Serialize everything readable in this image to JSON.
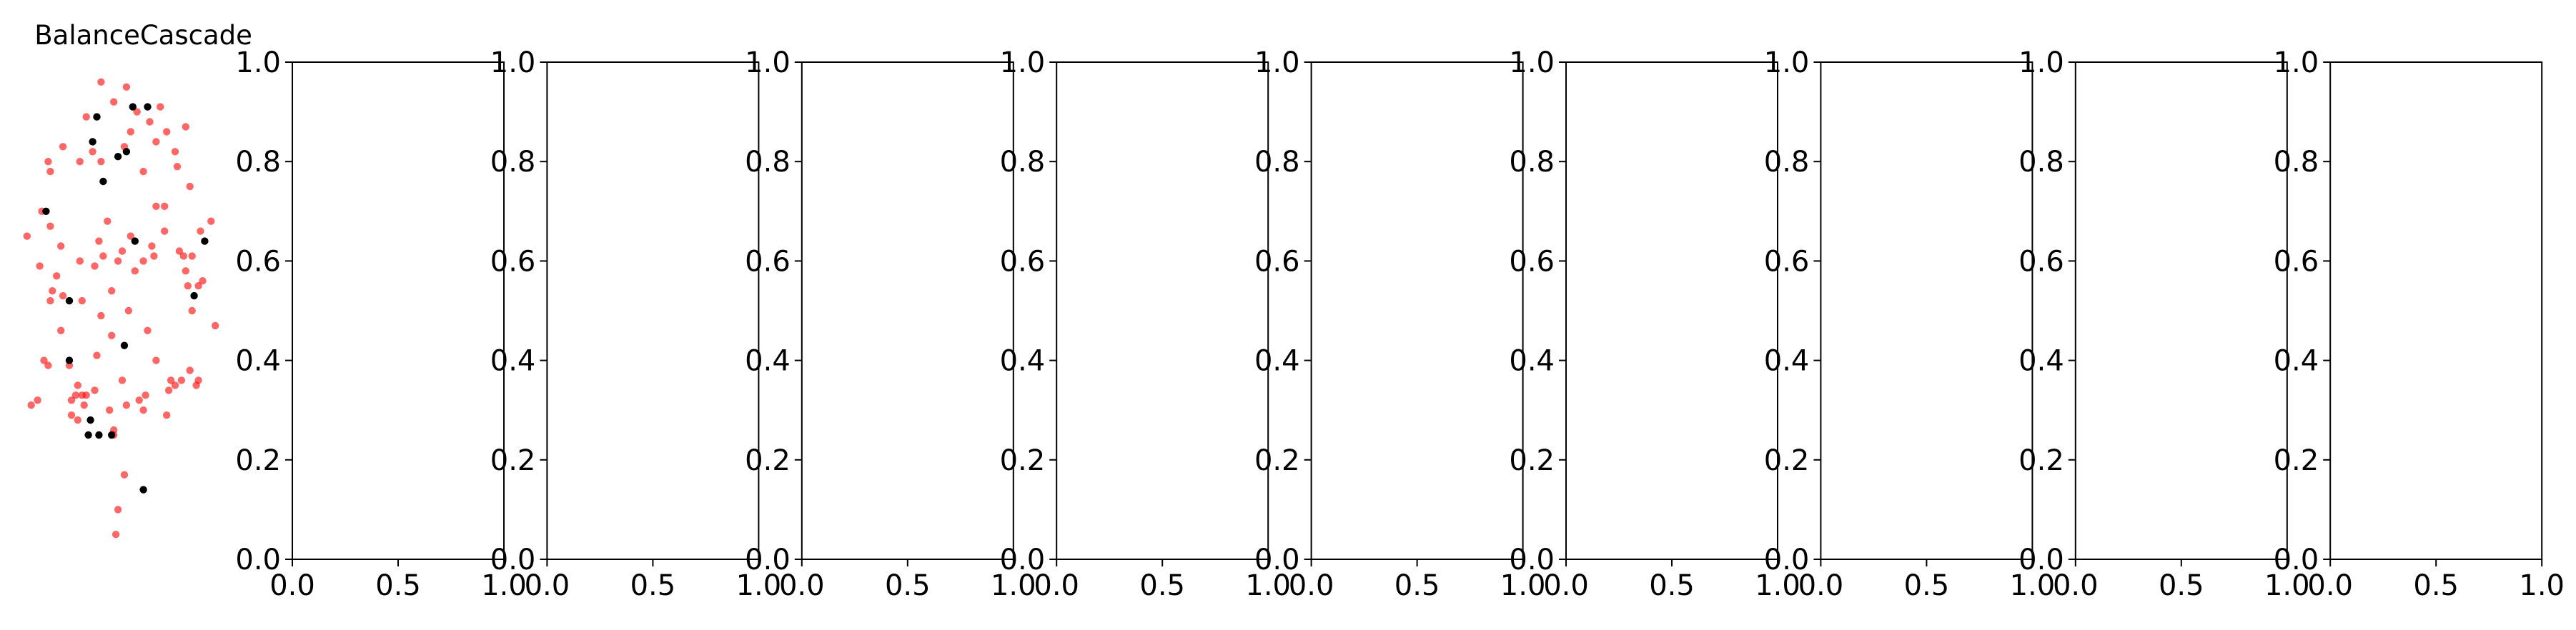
{
  "chart_data": [
    {
      "type": "scatter",
      "title": "BalanceCascade",
      "axis_visible": false,
      "series": [
        {
          "color": "#ff0000",
          "alpha": 0.6,
          "points": [
            [
              0.3,
              0.96
            ],
            [
              0.42,
              0.95
            ],
            [
              0.36,
              0.92
            ],
            [
              0.58,
              0.91
            ],
            [
              0.47,
              0.9
            ],
            [
              0.23,
              0.89
            ],
            [
              0.53,
              0.88
            ],
            [
              0.7,
              0.87
            ],
            [
              0.61,
              0.86
            ],
            [
              0.44,
              0.86
            ],
            [
              0.56,
              0.84
            ],
            [
              0.12,
              0.83
            ],
            [
              0.41,
              0.83
            ],
            [
              0.26,
              0.82
            ],
            [
              0.65,
              0.82
            ],
            [
              0.05,
              0.8
            ],
            [
              0.2,
              0.8
            ],
            [
              0.3,
              0.8
            ],
            [
              0.66,
              0.79
            ],
            [
              0.06,
              0.78
            ],
            [
              0.5,
              0.78
            ],
            [
              0.72,
              0.75
            ],
            [
              0.6,
              0.71
            ],
            [
              0.56,
              0.71
            ],
            [
              0.02,
              0.7
            ],
            [
              0.82,
              0.68
            ],
            [
              0.33,
              0.68
            ],
            [
              0.06,
              0.67
            ],
            [
              0.6,
              0.66
            ],
            [
              0.77,
              0.66
            ],
            [
              -0.05,
              0.65
            ],
            [
              0.44,
              0.65
            ],
            [
              0.29,
              0.64
            ],
            [
              0.54,
              0.63
            ],
            [
              0.11,
              0.63
            ],
            [
              0.4,
              0.62
            ],
            [
              0.67,
              0.62
            ],
            [
              0.55,
              0.61
            ],
            [
              0.31,
              0.61
            ],
            [
              0.69,
              0.61
            ],
            [
              0.73,
              0.61
            ],
            [
              0.38,
              0.6
            ],
            [
              0.5,
              0.6
            ],
            [
              0.2,
              0.6
            ],
            [
              0.27,
              0.59
            ],
            [
              0.01,
              0.59
            ],
            [
              0.46,
              0.58
            ],
            [
              0.7,
              0.58
            ],
            [
              0.09,
              0.57
            ],
            [
              0.78,
              0.56
            ],
            [
              0.71,
              0.55
            ],
            [
              0.76,
              0.55
            ],
            [
              0.35,
              0.54
            ],
            [
              0.07,
              0.54
            ],
            [
              0.12,
              0.53
            ],
            [
              0.21,
              0.52
            ],
            [
              0.06,
              0.52
            ],
            [
              0.43,
              0.5
            ],
            [
              0.73,
              0.5
            ],
            [
              0.3,
              0.49
            ],
            [
              0.84,
              0.47
            ],
            [
              0.52,
              0.46
            ],
            [
              0.11,
              0.46
            ],
            [
              0.35,
              0.45
            ],
            [
              0.28,
              0.41
            ],
            [
              0.56,
              0.4
            ],
            [
              0.03,
              0.4
            ],
            [
              0.05,
              0.39
            ],
            [
              0.15,
              0.39
            ],
            [
              0.72,
              0.38
            ],
            [
              0.68,
              0.36
            ],
            [
              0.63,
              0.36
            ],
            [
              0.76,
              0.36
            ],
            [
              0.4,
              0.36
            ],
            [
              0.65,
              0.35
            ],
            [
              0.19,
              0.35
            ],
            [
              0.75,
              0.35
            ],
            [
              0.62,
              0.34
            ],
            [
              0.27,
              0.34
            ],
            [
              0.23,
              0.33
            ],
            [
              0.18,
              0.33
            ],
            [
              0.21,
              0.33
            ],
            [
              0.51,
              0.33
            ],
            [
              0.48,
              0.32
            ],
            [
              0.42,
              0.31
            ],
            [
              0.16,
              0.32
            ],
            [
              0.22,
              0.31
            ],
            [
              -0.03,
              0.31
            ],
            [
              0.0,
              0.32
            ],
            [
              0.5,
              0.3
            ],
            [
              0.61,
              0.29
            ],
            [
              0.34,
              0.3
            ],
            [
              0.16,
              0.29
            ],
            [
              0.19,
              0.28
            ],
            [
              0.36,
              0.26
            ],
            [
              0.36,
              0.25
            ],
            [
              0.41,
              0.17
            ],
            [
              0.38,
              0.1
            ],
            [
              0.37,
              0.05
            ]
          ]
        },
        {
          "color": "#000000",
          "alpha": 1,
          "points": [
            [
              0.52,
              0.91
            ],
            [
              0.45,
              0.91
            ],
            [
              0.28,
              0.89
            ],
            [
              0.26,
              0.84
            ],
            [
              0.42,
              0.82
            ],
            [
              0.38,
              0.81
            ],
            [
              0.31,
              0.76
            ],
            [
              0.04,
              0.7
            ],
            [
              0.79,
              0.64
            ],
            [
              0.46,
              0.64
            ],
            [
              0.74,
              0.53
            ],
            [
              0.15,
              0.52
            ],
            [
              0.41,
              0.43
            ],
            [
              0.15,
              0.4
            ],
            [
              0.25,
              0.28
            ],
            [
              0.29,
              0.25
            ],
            [
              0.35,
              0.25
            ],
            [
              0.24,
              0.25
            ],
            [
              0.5,
              0.14
            ]
          ]
        }
      ]
    },
    {
      "type": "scatter",
      "xlim": [
        0,
        1
      ],
      "ylim": [
        0,
        1
      ],
      "xticks": [
        "0.0",
        "0.5",
        "1.0"
      ],
      "yticks": [
        "0.0",
        "0.2",
        "0.4",
        "0.6",
        "0.8",
        "1.0"
      ]
    },
    {
      "type": "scatter",
      "xlim": [
        0,
        1
      ],
      "ylim": [
        0,
        1
      ],
      "xticks": [
        "0.0",
        "0.5",
        "1.0"
      ],
      "yticks": [
        "0.0",
        "0.2",
        "0.4",
        "0.6",
        "0.8",
        "1.0"
      ]
    },
    {
      "type": "scatter",
      "xlim": [
        0,
        1
      ],
      "ylim": [
        0,
        1
      ],
      "xticks": [
        "0.0",
        "0.5",
        "1.0"
      ],
      "yticks": [
        "0.0",
        "0.2",
        "0.4",
        "0.6",
        "0.8",
        "1.0"
      ]
    },
    {
      "type": "scatter",
      "xlim": [
        0,
        1
      ],
      "ylim": [
        0,
        1
      ],
      "xticks": [
        "0.0",
        "0.5",
        "1.0"
      ],
      "yticks": [
        "0.0",
        "0.2",
        "0.4",
        "0.6",
        "0.8",
        "1.0"
      ]
    },
    {
      "type": "scatter",
      "xlim": [
        0,
        1
      ],
      "ylim": [
        0,
        1
      ],
      "xticks": [
        "0.0",
        "0.5",
        "1.0"
      ],
      "yticks": [
        "0.0",
        "0.2",
        "0.4",
        "0.6",
        "0.8",
        "1.0"
      ]
    },
    {
      "type": "scatter",
      "xlim": [
        0,
        1
      ],
      "ylim": [
        0,
        1
      ],
      "xticks": [
        "0.0",
        "0.5",
        "1.0"
      ],
      "yticks": [
        "0.0",
        "0.2",
        "0.4",
        "0.6",
        "0.8",
        "1.0"
      ]
    },
    {
      "type": "scatter",
      "xlim": [
        0,
        1
      ],
      "ylim": [
        0,
        1
      ],
      "xticks": [
        "0.0",
        "0.5",
        "1.0"
      ],
      "yticks": [
        "0.0",
        "0.2",
        "0.4",
        "0.6",
        "0.8",
        "1.0"
      ]
    },
    {
      "type": "scatter",
      "xlim": [
        0,
        1
      ],
      "ylim": [
        0,
        1
      ],
      "xticks": [
        "0.0",
        "0.5",
        "1.0"
      ],
      "yticks": [
        "0.0",
        "0.2",
        "0.4",
        "0.6",
        "0.8",
        "1.0"
      ]
    },
    {
      "type": "scatter",
      "xlim": [
        0,
        1
      ],
      "ylim": [
        0,
        1
      ],
      "xticks": [
        "0.0",
        "0.5",
        "1.0"
      ],
      "yticks": [
        "0.0",
        "0.2",
        "0.4",
        "0.6",
        "0.8",
        "1.0"
      ]
    }
  ]
}
